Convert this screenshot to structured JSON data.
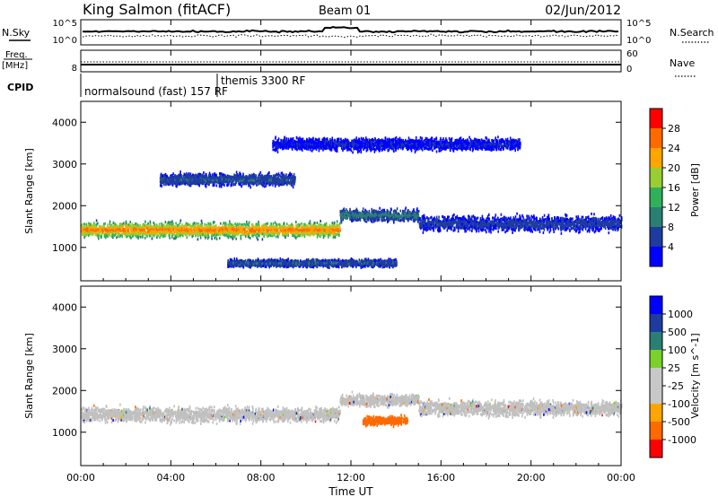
{
  "header": {
    "station": "King Salmon (fitACF)",
    "beam": "Beam 01",
    "date": "02/Jun/2012"
  },
  "top_panels": {
    "nsky_label": "N.Sky",
    "nsky_ticks": [
      "10^5",
      "10^0"
    ],
    "nsearch_label": "N.Search",
    "nsearch_ticks": [
      "10^5",
      "10^0"
    ],
    "freq_label_1": "Freq.",
    "freq_label_2": "[MHz]",
    "freq_tick": "8",
    "nave_label": "Nave",
    "nave_ticks": [
      "60",
      "0"
    ],
    "cpid_label": "CPID",
    "cpid_modes": [
      "normalsound (fast) 157 RF",
      "themis 3300 RF"
    ]
  },
  "colors": {
    "power_scale": [
      "#0000ff",
      "#1e3ca0",
      "#2a7f73",
      "#2fb15a",
      "#9acd32",
      "#ffa500",
      "#ff6a00",
      "#ff0000"
    ],
    "velocity_scale": [
      "#ff0000",
      "#ff6a00",
      "#ffa500",
      "#c8c8c8",
      "#c8c8c8",
      "#7ad12a",
      "#2a7f73",
      "#1e3ca0",
      "#0000ff"
    ],
    "ground_scatter": "#c0c0c0"
  },
  "chart_data": [
    {
      "type": "heatmap",
      "name": "power",
      "ylabel": "Slant Range [km]",
      "yticks": [
        "1000",
        "2000",
        "3000",
        "4000"
      ],
      "ylim": [
        200,
        4500
      ],
      "xlim": [
        0,
        24
      ],
      "colorbar_label": "Power [dB]",
      "colorbar_ticks": [
        "4",
        "8",
        "12",
        "16",
        "20",
        "24",
        "28"
      ],
      "colorbar_range": [
        0,
        32
      ],
      "features": [
        {
          "start_ut": 0.0,
          "end_ut": 11.5,
          "range_center_km": 1450,
          "range_width_km": 500,
          "peak_db": 26
        },
        {
          "start_ut": 11.5,
          "end_ut": 15.0,
          "range_center_km": 1800,
          "range_width_km": 400,
          "peak_db": 10
        },
        {
          "start_ut": 15.0,
          "end_ut": 24.0,
          "range_center_km": 1600,
          "range_width_km": 500,
          "peak_db": 6
        },
        {
          "start_ut": 3.5,
          "end_ut": 9.5,
          "range_center_km": 2650,
          "range_width_km": 400,
          "peak_db": 8
        },
        {
          "start_ut": 8.5,
          "end_ut": 19.5,
          "range_center_km": 3500,
          "range_width_km": 400,
          "peak_db": 4
        },
        {
          "start_ut": 6.5,
          "end_ut": 14.0,
          "range_center_km": 650,
          "range_width_km": 250,
          "peak_db": 8
        }
      ]
    },
    {
      "type": "heatmap",
      "name": "velocity",
      "ylabel": "Slant Range [km]",
      "yticks": [
        "1000",
        "2000",
        "3000",
        "4000"
      ],
      "ylim": [
        200,
        4500
      ],
      "xlim": [
        0,
        24
      ],
      "xlabel": "Time UT",
      "xticks": [
        "00:00",
        "04:00",
        "08:00",
        "12:00",
        "16:00",
        "20:00",
        "00:00"
      ],
      "colorbar_label": "Velocity [m s^-1]",
      "colorbar_ticks": [
        "1000",
        "500",
        "100",
        "25",
        "-25",
        "-100",
        "-500",
        "-1000"
      ],
      "features": [
        {
          "start_ut": 0.0,
          "end_ut": 11.5,
          "range_center_km": 1450,
          "range_width_km": 500,
          "kind": "ground scatter"
        },
        {
          "start_ut": 11.5,
          "end_ut": 15.0,
          "range_center_km": 1800,
          "range_width_km": 400,
          "kind": "ground scatter"
        },
        {
          "start_ut": 15.0,
          "end_ut": 24.0,
          "range_center_km": 1600,
          "range_width_km": 500,
          "kind": "ground scatter"
        },
        {
          "start_ut": 12.5,
          "end_ut": 14.5,
          "range_center_km": 1300,
          "range_width_km": 300,
          "velocity": -300
        }
      ]
    }
  ]
}
